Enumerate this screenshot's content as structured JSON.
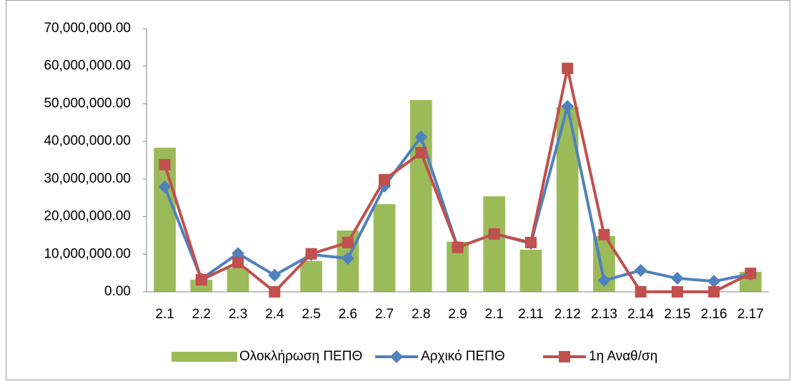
{
  "chart_data": {
    "type": "bar-line",
    "categories": [
      "2.1",
      "2.2",
      "2.3",
      "2.4",
      "2.5",
      "2.6",
      "2.7",
      "2.8",
      "2.9",
      "2.1",
      "2.11",
      "2.12",
      "2.13",
      "2.14",
      "2.15",
      "2.16",
      "2.17"
    ],
    "series": [
      {
        "name": "Ολοκλήρωση ΠΕΠΘ",
        "type": "bar",
        "color": "#9bbb59",
        "values": [
          38300000,
          3200000,
          6300000,
          0,
          8200000,
          16300000,
          23300000,
          51000000,
          13300000,
          25400000,
          11200000,
          49100000,
          14800000,
          0,
          0,
          0,
          5300000
        ]
      },
      {
        "name": "Αρχικό ΠΕΠΘ",
        "type": "line",
        "marker": "diamond",
        "color": "#4f81bd",
        "values": [
          27900000,
          3400000,
          10200000,
          4400000,
          9900000,
          8900000,
          28100000,
          41200000,
          11800000,
          15400000,
          12900000,
          49300000,
          3000000,
          5700000,
          3600000,
          2800000,
          4700000
        ]
      },
      {
        "name": "1η Αναθ/ση",
        "type": "line",
        "marker": "square",
        "color": "#c0504d",
        "values": [
          33800000,
          3200000,
          7800000,
          0,
          10100000,
          13100000,
          29800000,
          37000000,
          11800000,
          15400000,
          13100000,
          59400000,
          15200000,
          0,
          0,
          0,
          4900000
        ]
      }
    ],
    "ylim": [
      0,
      70000000
    ],
    "yticks": [
      {
        "value": 0,
        "label": "0.00"
      },
      {
        "value": 10000000,
        "label": "10,000,000.00"
      },
      {
        "value": 20000000,
        "label": "20,000,000.00"
      },
      {
        "value": 30000000,
        "label": "30,000,000.00"
      },
      {
        "value": 40000000,
        "label": "40,000,000.00"
      },
      {
        "value": 50000000,
        "label": "50,000,000.00"
      },
      {
        "value": 60000000,
        "label": "60,000,000.00"
      },
      {
        "value": 70000000,
        "label": "70,000,000.00"
      }
    ],
    "grid": false,
    "legend": "bottom"
  }
}
